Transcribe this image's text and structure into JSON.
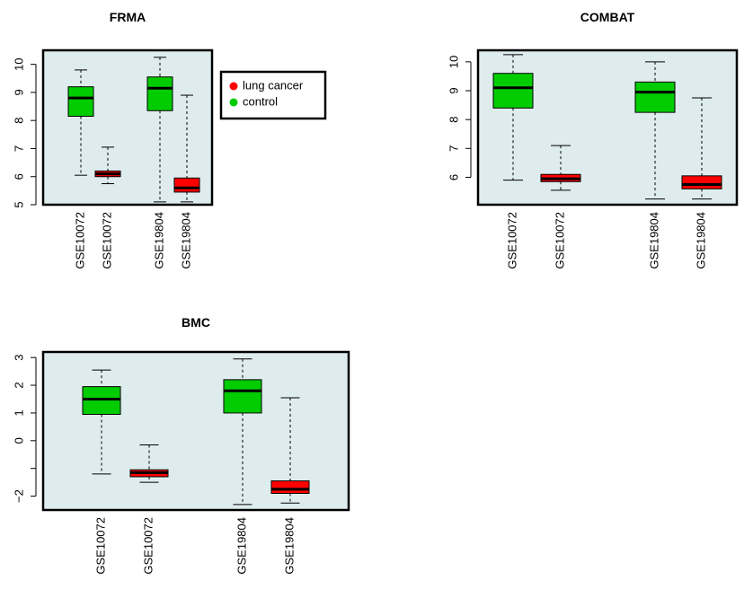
{
  "chart_data": [
    {
      "type": "box",
      "title": "FRMA",
      "xlabel": "",
      "ylabel": "",
      "ylim": [
        5,
        10.5
      ],
      "yticks": [
        5,
        6,
        7,
        8,
        9,
        10
      ],
      "yticklabels": [
        "5",
        "6",
        "7",
        "8",
        "9",
        "10"
      ],
      "categories": [
        "GSE10072",
        "GSE10072",
        "GSE19804",
        "GSE19804"
      ],
      "boxes": [
        {
          "group": "control",
          "min": 6.05,
          "q1": 8.15,
          "median": 8.8,
          "q3": 9.2,
          "max": 9.8
        },
        {
          "group": "lung cancer",
          "min": 5.75,
          "q1": 6.0,
          "median": 6.1,
          "q3": 6.2,
          "max": 7.05
        },
        {
          "group": "control",
          "min": 5.1,
          "q1": 8.35,
          "median": 9.15,
          "q3": 9.55,
          "max": 10.25
        },
        {
          "group": "lung cancer",
          "min": 5.1,
          "q1": 5.45,
          "median": 5.6,
          "q3": 5.95,
          "max": 8.9
        }
      ],
      "legend": {
        "placement": "right",
        "entries": [
          {
            "label": "lung cancer",
            "color": "#ff0000"
          },
          {
            "label": "control",
            "color": "#00cc00"
          }
        ]
      }
    },
    {
      "type": "box",
      "title": "COMBAT",
      "xlabel": "",
      "ylabel": "",
      "ylim": [
        5.05,
        10.4
      ],
      "yticks": [
        6,
        7,
        8,
        9,
        10
      ],
      "yticklabels": [
        "6",
        "7",
        "8",
        "9",
        "10"
      ],
      "categories": [
        "GSE10072",
        "GSE10072",
        "GSE19804",
        "GSE19804"
      ],
      "boxes": [
        {
          "group": "control",
          "min": 5.9,
          "q1": 8.4,
          "median": 9.1,
          "q3": 9.6,
          "max": 10.25
        },
        {
          "group": "lung cancer",
          "min": 5.55,
          "q1": 5.85,
          "median": 5.95,
          "q3": 6.1,
          "max": 7.1
        },
        {
          "group": "control",
          "min": 5.25,
          "q1": 8.25,
          "median": 8.95,
          "q3": 9.3,
          "max": 10.0
        },
        {
          "group": "lung cancer",
          "min": 5.25,
          "q1": 5.6,
          "median": 5.75,
          "q3": 6.05,
          "max": 8.75
        }
      ]
    },
    {
      "type": "box",
      "title": "BMC",
      "xlabel": "",
      "ylabel": "",
      "ylim": [
        -2.5,
        3.2
      ],
      "yticks": [
        -2,
        -1,
        0,
        1,
        2,
        3
      ],
      "yticklabels": [
        "−2",
        "",
        "0",
        "1",
        "2",
        "3"
      ],
      "categories": [
        "GSE10072",
        "GSE10072",
        "GSE19804",
        "GSE19804"
      ],
      "boxes": [
        {
          "group": "control",
          "min": -1.2,
          "q1": 0.95,
          "median": 1.5,
          "q3": 1.95,
          "max": 2.55
        },
        {
          "group": "lung cancer",
          "min": -1.5,
          "q1": -1.3,
          "median": -1.15,
          "q3": -1.05,
          "max": -0.15
        },
        {
          "group": "control",
          "min": -2.3,
          "q1": 1.0,
          "median": 1.8,
          "q3": 2.2,
          "max": 2.95
        },
        {
          "group": "lung cancer",
          "min": -2.25,
          "q1": -1.9,
          "median": -1.75,
          "q3": -1.45,
          "max": 1.55
        }
      ]
    }
  ]
}
